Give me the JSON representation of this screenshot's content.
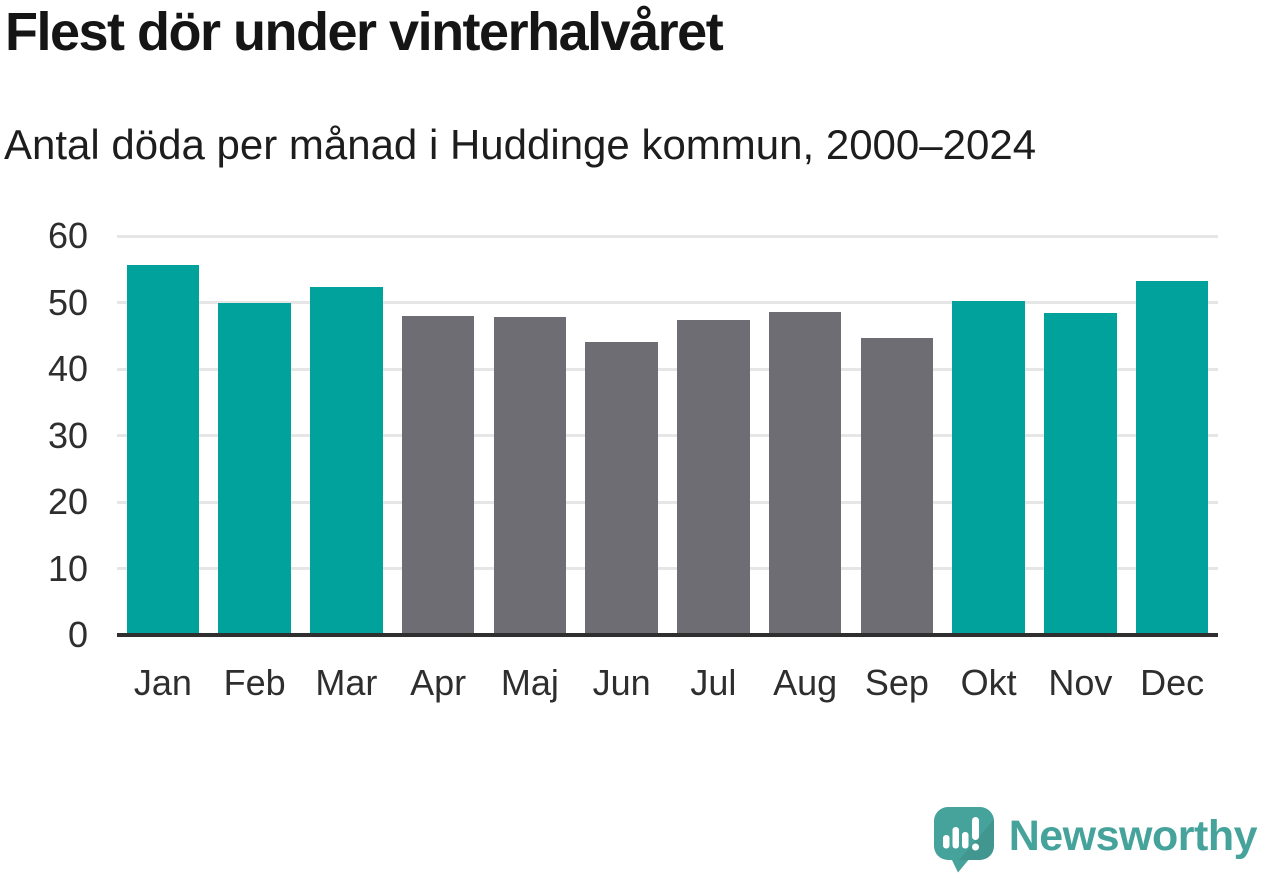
{
  "header": {
    "title": "Flest dör under vinterhalvåret",
    "subtitle": "Antal döda per månad i Huddinge kommun, 2000–2024"
  },
  "chart_data": {
    "type": "bar",
    "title": "Flest dör under vinterhalvåret",
    "subtitle": "Antal döda per månad i Huddinge kommun, 2000–2024",
    "categories": [
      "Jan",
      "Feb",
      "Mar",
      "Apr",
      "Maj",
      "Jun",
      "Jul",
      "Aug",
      "Sep",
      "Okt",
      "Nov",
      "Dec"
    ],
    "values": [
      55.6,
      49.9,
      52.3,
      47.9,
      47.8,
      44.1,
      47.3,
      48.5,
      44.7,
      50.2,
      48.4,
      53.3
    ],
    "bar_groups": [
      "winter",
      "winter",
      "winter",
      "summer",
      "summer",
      "summer",
      "summer",
      "summer",
      "summer",
      "winter",
      "winter",
      "winter"
    ],
    "xlabel": "",
    "ylabel": "",
    "ylim": [
      0,
      60
    ],
    "yticks": [
      0,
      10,
      20,
      30,
      40,
      50,
      60
    ],
    "grid": true,
    "legend": "none"
  },
  "colors": {
    "winter_bar": "#00A29B",
    "summer_bar": "#6D6D73",
    "gridline": "#E6E6E6",
    "axis": "#2F2F2F",
    "tick_text": "#2e2e2e",
    "logo": "#46A39B"
  },
  "footer": {
    "brand": "Newsworthy",
    "icon": "newsworthy-speech-bubble-chart-icon"
  }
}
